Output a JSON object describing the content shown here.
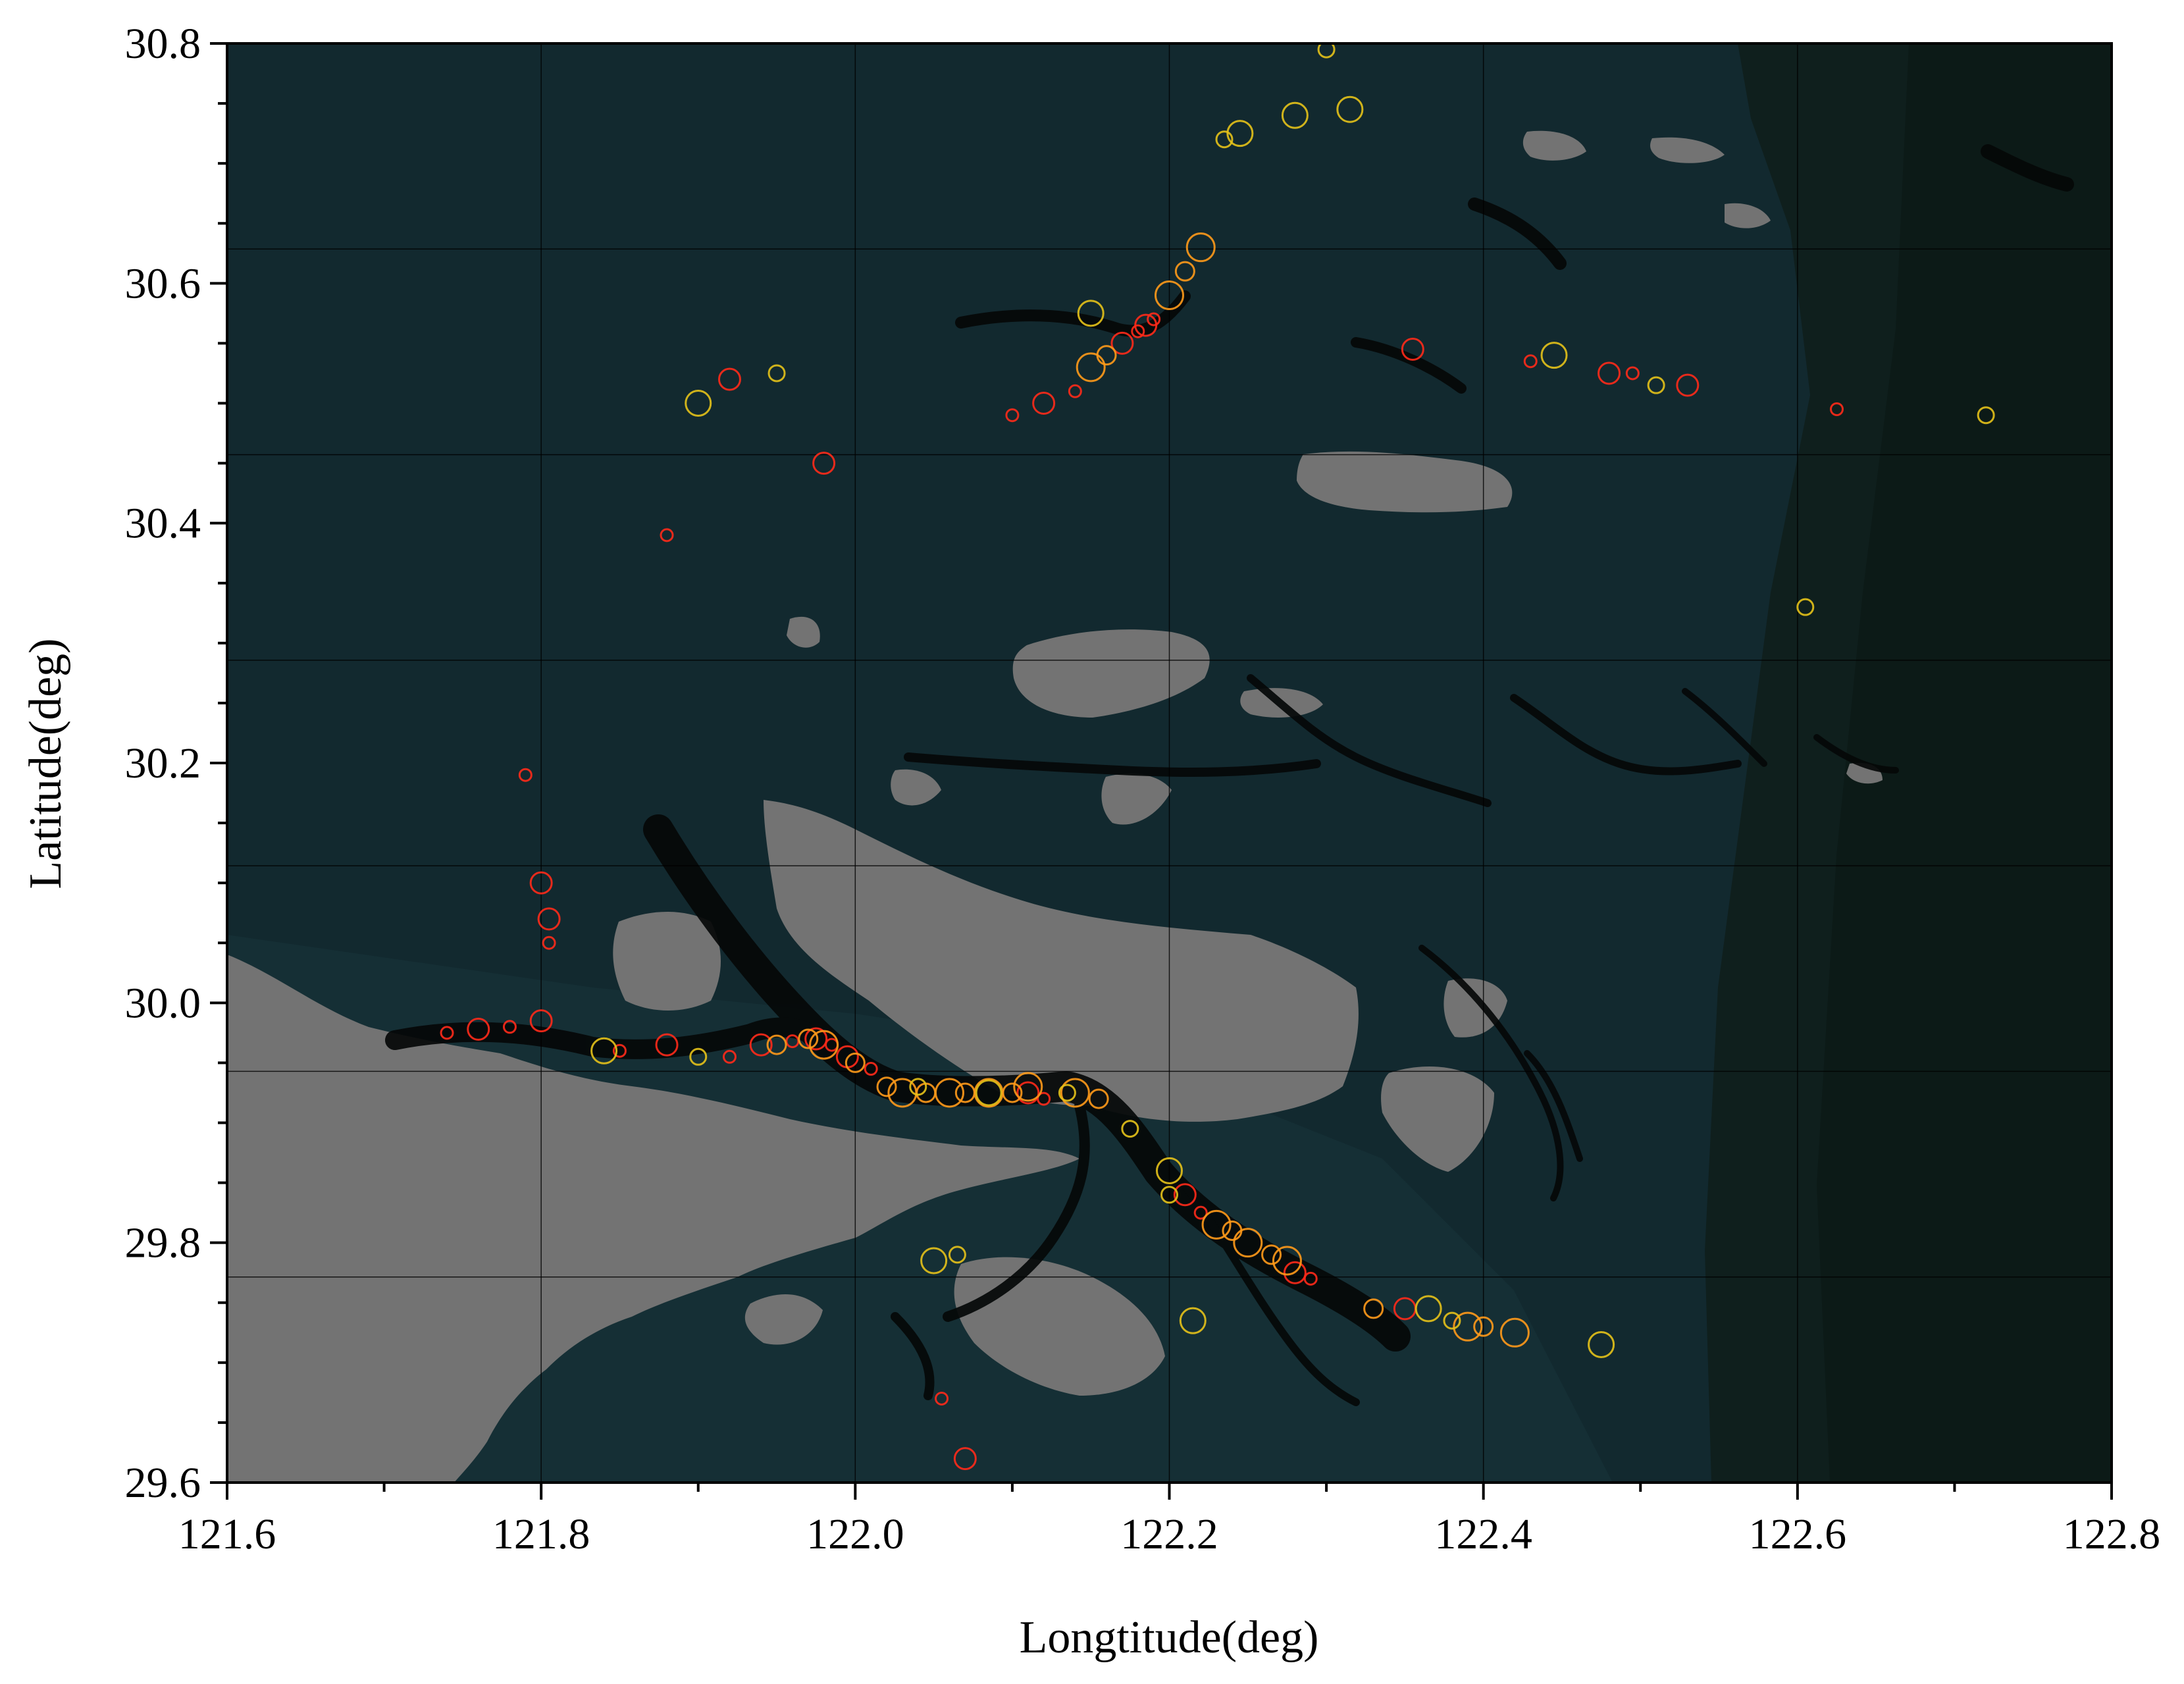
{
  "chart_data": {
    "type": "scatter",
    "title": "",
    "xlabel": "Longtitude(deg)",
    "ylabel": "Latitude(deg)",
    "xlim": [
      121.6,
      122.8
    ],
    "ylim": [
      29.6,
      30.8
    ],
    "x_ticks": [
      "121.6",
      "121.8",
      "122.0",
      "122.2",
      "122.4",
      "122.6",
      "122.8"
    ],
    "y_ticks": [
      "29.6",
      "29.8",
      "30.0",
      "30.2",
      "30.4",
      "30.6",
      "30.8"
    ],
    "x_tick_values": [
      121.6,
      121.8,
      122.0,
      122.2,
      122.4,
      122.6,
      122.8
    ],
    "y_tick_values": [
      29.6,
      29.8,
      30.0,
      30.2,
      30.4,
      30.6,
      30.8
    ],
    "grid": true,
    "background": "map of coastline: grey land, dark teal sea, black shipping lanes",
    "colors": {
      "sea": "#12292f",
      "sea_deep": "#0f1f1d",
      "land": "#737373",
      "lane": "#050808",
      "marker_red": "#ff2a1a",
      "marker_orange": "#ff9a1a",
      "marker_yellow": "#e6c21a"
    },
    "series": [
      {
        "color": "#ff2a1a",
        "points": [
          [
            121.74,
            29.975
          ],
          [
            121.76,
            29.978
          ],
          [
            121.78,
            29.98
          ],
          [
            121.8,
            29.985
          ],
          [
            121.85,
            29.96
          ],
          [
            121.88,
            29.965
          ],
          [
            121.92,
            29.955
          ],
          [
            121.94,
            29.965
          ],
          [
            121.96,
            29.968
          ],
          [
            121.975,
            29.97
          ],
          [
            121.985,
            29.965
          ],
          [
            121.995,
            29.955
          ],
          [
            122.01,
            29.945
          ],
          [
            122.11,
            29.925
          ],
          [
            122.12,
            29.92
          ],
          [
            122.21,
            29.84
          ],
          [
            122.22,
            29.825
          ],
          [
            122.28,
            29.775
          ],
          [
            122.29,
            29.77
          ],
          [
            122.35,
            29.745
          ],
          [
            122.19,
            30.57
          ],
          [
            122.185,
            30.565
          ],
          [
            122.18,
            30.56
          ],
          [
            122.17,
            30.55
          ],
          [
            122.14,
            30.51
          ],
          [
            122.12,
            30.5
          ],
          [
            122.1,
            30.49
          ],
          [
            121.98,
            30.45
          ],
          [
            121.88,
            30.39
          ],
          [
            121.805,
            30.07
          ],
          [
            121.805,
            30.05
          ],
          [
            121.8,
            30.1
          ],
          [
            121.79,
            30.19
          ],
          [
            122.355,
            30.545
          ],
          [
            122.43,
            30.535
          ],
          [
            122.48,
            30.525
          ],
          [
            122.495,
            30.525
          ],
          [
            122.53,
            30.515
          ],
          [
            122.625,
            30.495
          ],
          [
            122.07,
            29.62
          ],
          [
            122.055,
            29.67
          ],
          [
            121.92,
            30.52
          ]
        ]
      },
      {
        "color": "#ff9a1a",
        "points": [
          [
            122.02,
            29.93
          ],
          [
            122.03,
            29.925
          ],
          [
            122.045,
            29.925
          ],
          [
            122.06,
            29.925
          ],
          [
            122.07,
            29.925
          ],
          [
            122.085,
            29.925
          ],
          [
            122.1,
            29.925
          ],
          [
            122.14,
            29.925
          ],
          [
            122.155,
            29.92
          ],
          [
            122.23,
            29.815
          ],
          [
            122.24,
            29.81
          ],
          [
            122.25,
            29.8
          ],
          [
            122.265,
            29.79
          ],
          [
            122.275,
            29.785
          ],
          [
            122.33,
            29.745
          ],
          [
            122.39,
            29.73
          ],
          [
            122.4,
            29.73
          ],
          [
            122.42,
            29.725
          ],
          [
            121.97,
            29.97
          ],
          [
            121.98,
            29.965
          ],
          [
            122.0,
            29.95
          ],
          [
            122.22,
            30.63
          ],
          [
            122.21,
            30.61
          ],
          [
            122.2,
            30.59
          ],
          [
            122.16,
            30.54
          ],
          [
            122.15,
            30.53
          ],
          [
            121.95,
            29.965
          ],
          [
            122.11,
            29.93
          ]
        ]
      },
      {
        "color": "#e6c21a",
        "points": [
          [
            121.84,
            29.96
          ],
          [
            121.9,
            29.955
          ],
          [
            122.05,
            29.785
          ],
          [
            122.065,
            29.79
          ],
          [
            122.2,
            29.86
          ],
          [
            122.2,
            29.84
          ],
          [
            122.215,
            29.735
          ],
          [
            122.175,
            29.895
          ],
          [
            122.365,
            29.745
          ],
          [
            122.38,
            29.735
          ],
          [
            122.475,
            29.715
          ],
          [
            122.72,
            30.49
          ],
          [
            122.15,
            30.575
          ],
          [
            122.51,
            30.515
          ],
          [
            122.445,
            30.54
          ],
          [
            122.235,
            30.72
          ],
          [
            122.245,
            30.725
          ],
          [
            122.3,
            30.795
          ],
          [
            122.315,
            30.745
          ],
          [
            122.605,
            30.33
          ],
          [
            121.9,
            30.5
          ],
          [
            121.95,
            30.525
          ],
          [
            122.28,
            30.74
          ],
          [
            122.135,
            29.925
          ],
          [
            122.085,
            29.925
          ],
          [
            122.04,
            29.93
          ]
        ]
      }
    ]
  }
}
